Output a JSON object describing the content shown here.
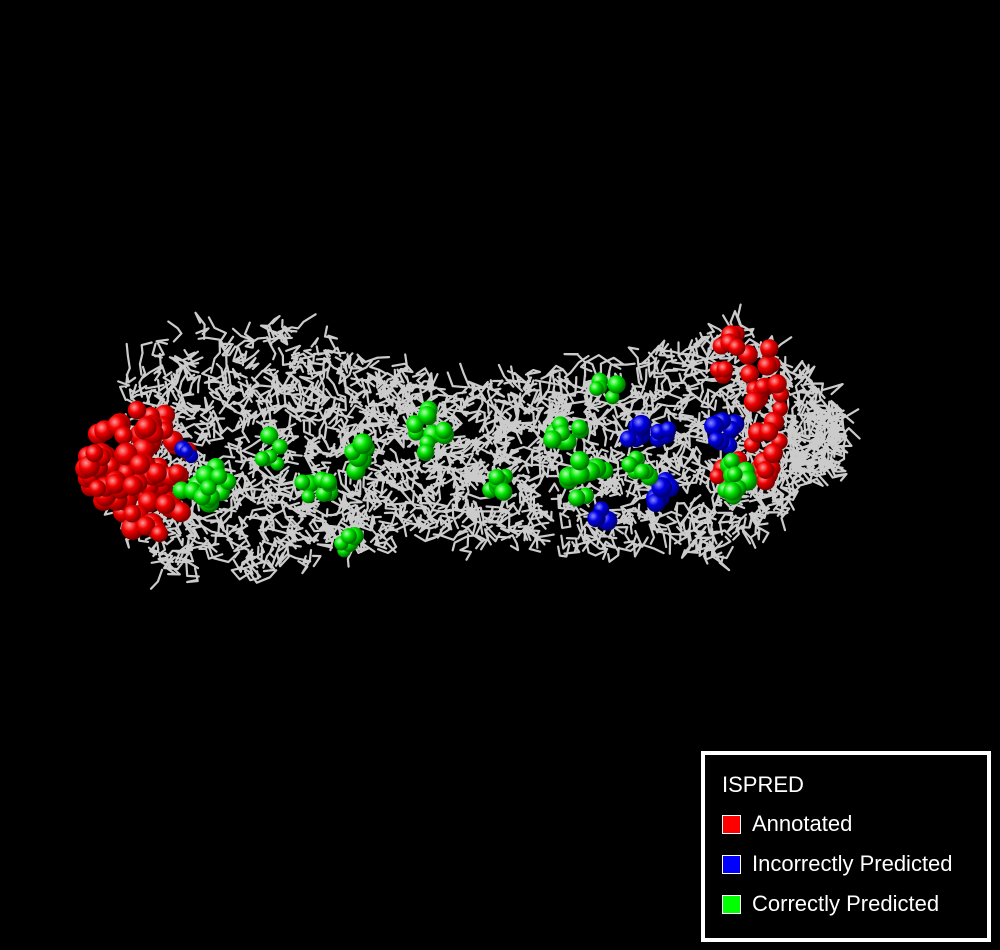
{
  "legend": {
    "title": "ISPRED",
    "items": [
      {
        "label": "Annotated",
        "color": "#ff0000"
      },
      {
        "label": "Incorrectly Predicted",
        "color": "#0000ff"
      },
      {
        "label": "Correctly Predicted",
        "color": "#00ff00"
      }
    ]
  },
  "colors": {
    "background": "#000000",
    "backbone": "#dcdcdc",
    "annotated": "#ff0000",
    "incorrectly_predicted": "#0000ff",
    "correctly_predicted": "#00ff00"
  }
}
